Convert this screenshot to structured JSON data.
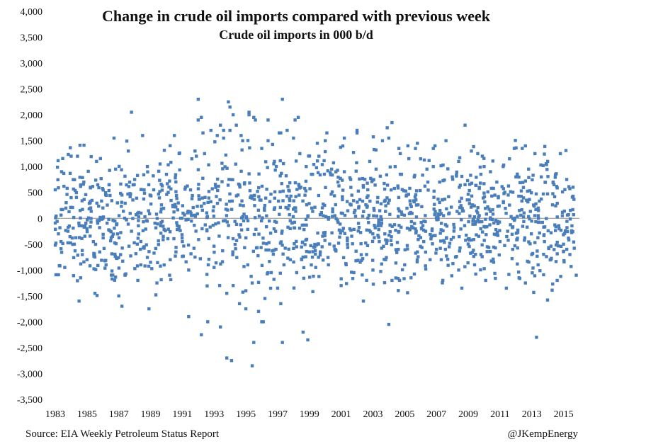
{
  "chart_data": {
    "type": "scatter",
    "title": "Change in crude oil imports compared with previous week",
    "subtitle": "Crude oil imports in 000 b/d",
    "xlabel": "",
    "ylabel": "",
    "ylim": [
      -3500,
      4000
    ],
    "xlim": [
      1983,
      2016
    ],
    "y_ticks": [
      "4,000",
      "3,500",
      "3,000",
      "2,500",
      "2,000",
      "1,500",
      "1,000",
      "500",
      "0",
      "-500",
      "-1,000",
      "-1,500",
      "-2,000",
      "-2,500",
      "-3,000",
      "-3,500"
    ],
    "y_tick_values": [
      4000,
      3500,
      3000,
      2500,
      2000,
      1500,
      1000,
      500,
      0,
      -500,
      -1000,
      -1500,
      -2000,
      -2500,
      -3000,
      -3500
    ],
    "x_ticks": [
      "1983",
      "1985",
      "1987",
      "1989",
      "1991",
      "1993",
      "1995",
      "1997",
      "1999",
      "2001",
      "2003",
      "2005",
      "2007",
      "2009",
      "2011",
      "2013",
      "2015"
    ],
    "x_tick_values": [
      1983,
      1985,
      1987,
      1989,
      1991,
      1993,
      1995,
      1997,
      1999,
      2001,
      2003,
      2005,
      2007,
      2009,
      2011,
      2013,
      2015
    ],
    "grid": false,
    "marker_color": "#4a7ebb",
    "series": [
      {
        "values_note_free": true,
        "x": [
          1983.0,
          1983.2,
          1983.4,
          1983.6,
          1983.8,
          1984.0,
          1984.2,
          1984.4,
          1984.6,
          1984.8,
          1985.0,
          1985.2,
          1985.4,
          1985.6,
          1985.8,
          1986.0,
          1986.2,
          1986.4,
          1986.6,
          1986.8,
          1987.0,
          1987.2,
          1987.4,
          1987.6,
          1987.8,
          1988.0,
          1988.2,
          1988.4,
          1988.6,
          1988.8,
          1989.0,
          1989.2,
          1989.4,
          1989.6,
          1989.8,
          1990.0,
          1990.2,
          1990.4,
          1990.6,
          1990.8,
          1991.0,
          1991.2,
          1991.4,
          1991.6,
          1991.8,
          1992.0,
          1992.2,
          1992.4,
          1992.6,
          1992.8,
          1993.0,
          1993.2,
          1993.4,
          1993.6,
          1993.8,
          1994.0,
          1994.2,
          1994.4,
          1994.6,
          1994.8,
          1995.0,
          1995.2,
          1995.4,
          1995.6,
          1995.8,
          1996.0,
          1996.2,
          1996.4,
          1996.6,
          1996.8,
          1997.0,
          1997.2,
          1997.4,
          1997.6,
          1997.8,
          1998.0,
          1998.2,
          1998.4,
          1998.6,
          1998.8,
          1999.0,
          1999.2,
          1999.4,
          1999.6,
          1999.8,
          2000.0,
          2000.2,
          2000.4,
          2000.6,
          2000.8,
          2001.0,
          2001.2,
          2001.4,
          2001.6,
          2001.8,
          2002.0,
          2002.2,
          2002.4,
          2002.6,
          2002.8,
          2003.0,
          2003.2,
          2003.4,
          2003.6,
          2003.8,
          2004.0,
          2004.2,
          2004.4,
          2004.6,
          2004.8,
          2005.0,
          2005.2,
          2005.4,
          2005.6,
          2005.8,
          2006.0,
          2006.2,
          2006.4,
          2006.6,
          2006.8,
          2007.0,
          2007.2,
          2007.4,
          2007.6,
          2007.8,
          2008.0,
          2008.2,
          2008.4,
          2008.6,
          2008.8,
          2009.0,
          2009.2,
          2009.4,
          2009.6,
          2009.8,
          2010.0,
          2010.2,
          2010.4,
          2010.6,
          2010.8,
          2011.0,
          2011.2,
          2011.4,
          2011.6,
          2011.8,
          2012.0,
          2012.2,
          2012.4,
          2012.6,
          2012.8,
          2013.0,
          2013.2,
          2013.4,
          2013.6,
          2013.8,
          2014.0,
          2014.2,
          2014.4,
          2014.6,
          2014.8,
          2015.0,
          2015.2,
          2015.4,
          2015.6,
          2015.8,
          1992.0,
          1992.2,
          1993.6,
          1993.9,
          1995.2,
          1995.5,
          1997.3,
          1987.8,
          1998.1,
          1994.1,
          1995.4,
          1996.0,
          1988.9,
          2008.8,
          2004.2,
          2003.9,
          2011.9,
          2001.2,
          2002.0,
          1994.0,
          1995.5,
          1996.1,
          1997.3,
          1998.6,
          1998.9,
          1998.3,
          1997.1,
          1993.4,
          1994.2,
          1994.7,
          1992.3,
          1991.8,
          1988.5,
          1986.7,
          1984.0,
          2012.6,
          2004.0,
          2005.8,
          1999.5,
          1997.2,
          1996.4,
          1993.8,
          1990.5,
          1987.2,
          1985.5,
          1984.5,
          2013.3,
          2010.1,
          2008.4,
          2006.8,
          2002.4,
          2000.1,
          1995.0,
          1991.4
        ],
        "y": [
          550,
          -300,
          900,
          -950,
          -250,
          400,
          -500,
          1200,
          -1150,
          700,
          -800,
          300,
          -450,
          1100,
          -650,
          200,
          -900,
          650,
          -350,
          950,
          -1500,
          450,
          -1100,
          1300,
          -250,
          750,
          -1200,
          100,
          -550,
          1000,
          -850,
          550,
          -1250,
          1050,
          -350,
          850,
          -1100,
          250,
          -650,
          1250,
          -450,
          600,
          -1000,
          1150,
          -750,
          1900,
          -2250,
          1250,
          -2000,
          1700,
          -950,
          1600,
          -2100,
          1550,
          -1450,
          1700,
          -1300,
          1800,
          -1650,
          1500,
          -1400,
          2000,
          -1250,
          1900,
          -1800,
          1350,
          -1550,
          1500,
          -1050,
          1100,
          -1350,
          1650,
          -900,
          1700,
          -800,
          1550,
          -1050,
          1250,
          -750,
          1000,
          -650,
          850,
          -950,
          1200,
          -550,
          1500,
          -900,
          950,
          -600,
          700,
          -1300,
          900,
          -500,
          750,
          -1050,
          1650,
          -850,
          600,
          -700,
          1100,
          -1000,
          950,
          -450,
          1500,
          -800,
          1550,
          -1200,
          1000,
          -600,
          850,
          -900,
          1400,
          -1150,
          800,
          -650,
          1150,
          -450,
          950,
          -800,
          1000,
          -600,
          700,
          -1200,
          1500,
          -550,
          800,
          -750,
          1100,
          -1350,
          650,
          -400,
          1300,
          -900,
          1250,
          -700,
          1000,
          -550,
          900,
          -850,
          700,
          -450,
          1000,
          -1350,
          1150,
          -600,
          800,
          -1150,
          1350,
          -1250,
          950,
          -700,
          1250,
          -900,
          800,
          -450,
          1100,
          -800,
          650,
          -1200,
          1250,
          -500,
          750,
          -700,
          600,
          -1100,
          2300,
          1950,
          1700,
          2250,
          2050,
          1950,
          2300,
          2050,
          1900,
          -2750,
          -2850,
          -2000,
          -1750,
          1800,
          1850,
          1750,
          1350,
          1550,
          1700,
          2150,
          -2400,
          -2000,
          -2400,
          -2200,
          -2350,
          1950,
          1650,
          1800,
          2000,
          1600,
          1650,
          1300,
          1600,
          1550,
          1200,
          1400,
          -2050,
          1450,
          1450,
          -1650,
          1900,
          -2700,
          1600,
          -1700,
          -1450,
          -1600,
          -2300,
          -1200,
          -1000,
          1350,
          -1600,
          1650,
          -1750,
          -1900
        ]
      }
    ]
  },
  "footer": {
    "source": "Source: EIA Weekly Petroleum Status Report",
    "credit": "@JKempEnergy"
  }
}
